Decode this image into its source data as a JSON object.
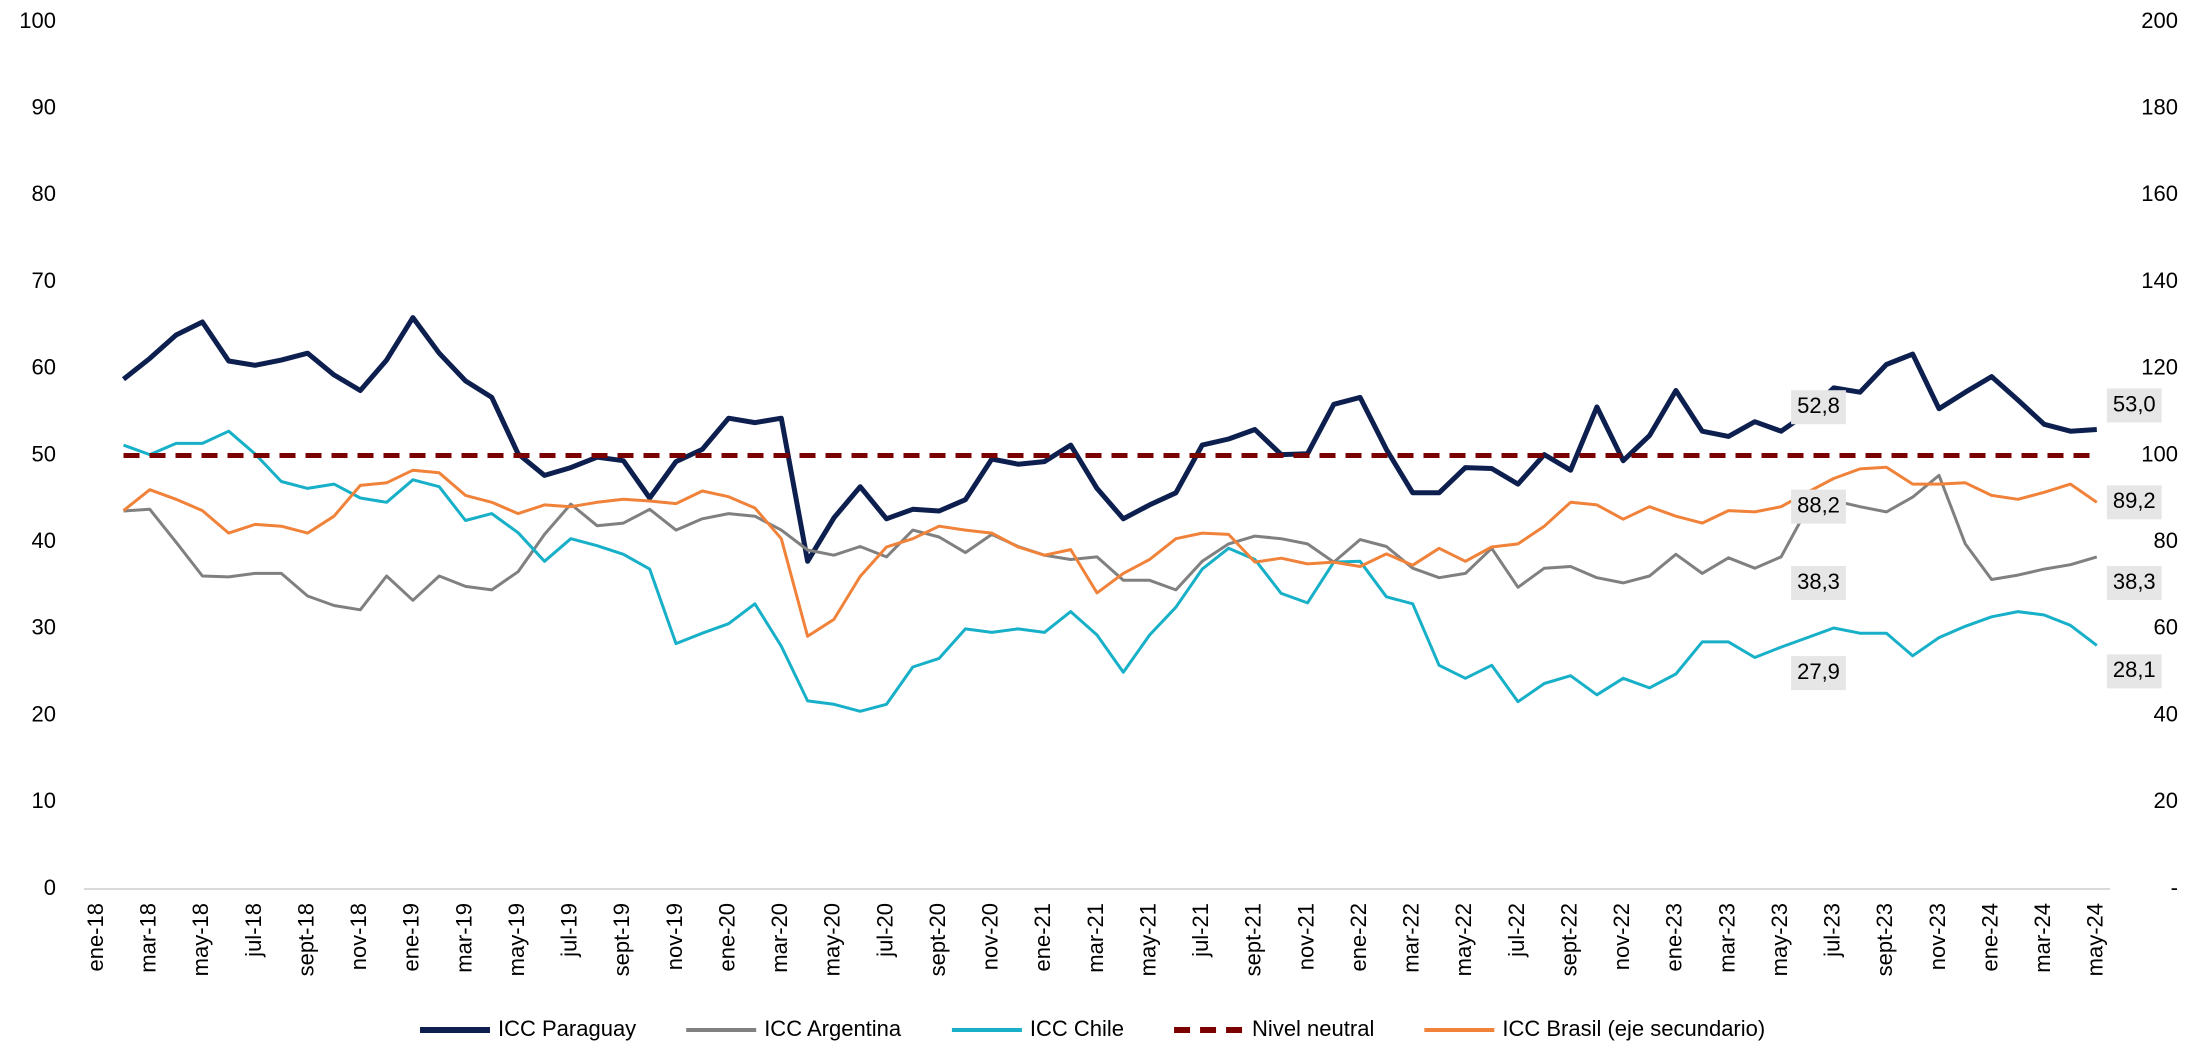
{
  "chart_data": {
    "type": "line",
    "categories": [
      "ene-18",
      null,
      "mar-18",
      null,
      "may-18",
      null,
      "jul-18",
      null,
      "sept-18",
      null,
      "nov-18",
      null,
      "ene-19",
      null,
      "mar-19",
      null,
      "may-19",
      null,
      "jul-19",
      null,
      "sept-19",
      null,
      "nov-19",
      null,
      "ene-20",
      null,
      "mar-20",
      null,
      "may-20",
      null,
      "jul-20",
      null,
      "sept-20",
      null,
      "nov-20",
      null,
      "ene-21",
      null,
      "mar-21",
      null,
      "may-21",
      null,
      "jul-21",
      null,
      "sept-21",
      null,
      "nov-21",
      null,
      "ene-22",
      null,
      "mar-22",
      null,
      "may-22",
      null,
      "jul-22",
      null,
      "sept-22",
      null,
      "nov-22",
      null,
      "ene-23",
      null,
      "mar-23",
      null,
      "may-23",
      null,
      "jul-23",
      null,
      "sept-23",
      null,
      "nov-23",
      null,
      "ene-24",
      null,
      "mar-24",
      null,
      "may-24"
    ],
    "ylim": [
      0,
      100
    ],
    "yticks": [
      0,
      10,
      20,
      30,
      40,
      50,
      60,
      70,
      80,
      90,
      100
    ],
    "y2lim": [
      0,
      200
    ],
    "y2ticks": [
      {
        "value": 0,
        "label": "-"
      },
      20,
      40,
      60,
      80,
      100,
      120,
      140,
      160,
      180,
      200
    ],
    "grid": false,
    "legend": "bottom",
    "series": [
      {
        "name": "ICC Paraguay",
        "color": "#0d1f4f",
        "width": 5,
        "values": [
          null,
          58.8,
          61.2,
          63.9,
          65.4,
          60.9,
          60.4,
          61.0,
          61.8,
          59.3,
          57.5,
          61.0,
          65.9,
          61.8,
          58.6,
          56.7,
          50.2,
          47.7,
          48.6,
          49.8,
          49.4,
          45.1,
          49.3,
          50.7,
          54.3,
          53.8,
          54.3,
          37.8,
          42.8,
          46.4,
          42.7,
          43.8,
          43.6,
          44.9,
          49.6,
          49.0,
          49.3,
          51.2,
          46.2,
          42.7,
          44.3,
          45.7,
          51.2,
          51.9,
          53.0,
          50.1,
          50.2,
          55.9,
          56.7,
          50.7,
          45.7,
          45.7,
          48.6,
          48.5,
          46.7,
          50.1,
          48.3,
          55.6,
          49.4,
          52.3,
          57.5,
          52.8,
          52.2,
          53.9,
          52.8,
          54.9,
          57.8,
          57.3,
          60.5,
          61.7,
          55.4,
          57.3,
          59.1,
          56.4,
          53.6,
          52.8,
          53.0
        ],
        "value_labels": [
          null,
          null,
          null,
          null,
          null,
          null,
          null,
          null,
          null,
          null,
          null,
          null,
          null,
          null,
          null,
          null,
          null,
          null,
          null,
          null,
          null,
          null,
          null,
          null,
          null,
          null,
          null,
          null,
          null,
          null,
          null,
          null,
          null,
          null,
          null,
          null,
          null,
          null,
          null,
          null,
          null,
          null,
          null,
          null,
          null,
          null,
          null,
          null,
          null,
          null,
          null,
          null,
          null,
          null,
          null,
          null,
          null,
          null,
          null,
          null,
          null,
          null,
          null,
          null,
          "52,8",
          null,
          null,
          null,
          null,
          null,
          null,
          null,
          null,
          null,
          null,
          null,
          "53,0"
        ]
      },
      {
        "name": "ICC Argentina",
        "color": "#808080",
        "width": 3,
        "values": [
          null,
          43.6,
          43.8,
          40.0,
          36.1,
          36.0,
          36.4,
          36.4,
          33.8,
          32.7,
          32.2,
          36.1,
          33.3,
          36.1,
          34.9,
          34.5,
          36.6,
          40.9,
          44.4,
          41.9,
          42.2,
          43.8,
          41.4,
          42.7,
          43.3,
          43.0,
          41.4,
          39.1,
          38.5,
          39.5,
          38.3,
          41.4,
          40.6,
          38.8,
          40.9,
          39.5,
          38.5,
          38.0,
          38.3,
          35.6,
          35.6,
          34.5,
          37.8,
          39.8,
          40.7,
          40.4,
          39.8,
          37.7,
          40.3,
          39.5,
          37.0,
          35.9,
          36.4,
          39.3,
          34.8,
          37.0,
          37.2,
          35.9,
          35.3,
          36.1,
          38.6,
          36.4,
          38.2,
          37.0,
          38.3,
          43.9,
          44.8,
          44.1,
          43.5,
          45.2,
          47.7,
          39.8,
          35.7,
          36.2,
          36.9,
          37.4,
          38.3
        ],
        "value_labels": [
          null,
          null,
          null,
          null,
          null,
          null,
          null,
          null,
          null,
          null,
          null,
          null,
          null,
          null,
          null,
          null,
          null,
          null,
          null,
          null,
          null,
          null,
          null,
          null,
          null,
          null,
          null,
          null,
          null,
          null,
          null,
          null,
          null,
          null,
          null,
          null,
          null,
          null,
          null,
          null,
          null,
          null,
          null,
          null,
          null,
          null,
          null,
          null,
          null,
          null,
          null,
          null,
          null,
          null,
          null,
          null,
          null,
          null,
          null,
          null,
          null,
          null,
          null,
          null,
          "38,3",
          null,
          null,
          null,
          null,
          null,
          null,
          null,
          null,
          null,
          null,
          null,
          "38,3"
        ]
      },
      {
        "name": "ICC Chile",
        "color": "#17b0c8",
        "width": 3,
        "values": [
          null,
          51.2,
          50.1,
          51.4,
          51.4,
          52.8,
          50.2,
          47.0,
          46.2,
          46.7,
          45.1,
          44.6,
          47.2,
          46.4,
          42.5,
          43.3,
          41.1,
          37.8,
          40.4,
          39.6,
          38.6,
          36.9,
          28.3,
          29.5,
          30.6,
          32.9,
          28.0,
          21.7,
          21.3,
          20.5,
          21.3,
          25.6,
          26.6,
          30.0,
          29.6,
          30.0,
          29.6,
          32.0,
          29.3,
          25.0,
          29.3,
          32.5,
          36.9,
          39.3,
          38.0,
          34.1,
          33.0,
          37.7,
          37.8,
          33.7,
          32.9,
          25.8,
          24.3,
          25.8,
          21.6,
          23.7,
          24.6,
          22.4,
          24.3,
          23.2,
          24.8,
          28.5,
          28.5,
          26.7,
          27.9,
          29.0,
          30.1,
          29.5,
          29.5,
          26.9,
          29.0,
          30.3,
          31.4,
          32.0,
          31.6,
          30.4,
          28.1
        ],
        "value_labels": [
          null,
          null,
          null,
          null,
          null,
          null,
          null,
          null,
          null,
          null,
          null,
          null,
          null,
          null,
          null,
          null,
          null,
          null,
          null,
          null,
          null,
          null,
          null,
          null,
          null,
          null,
          null,
          null,
          null,
          null,
          null,
          null,
          null,
          null,
          null,
          null,
          null,
          null,
          null,
          null,
          null,
          null,
          null,
          null,
          null,
          null,
          null,
          null,
          null,
          null,
          null,
          null,
          null,
          null,
          null,
          null,
          null,
          null,
          null,
          null,
          null,
          null,
          null,
          null,
          "27,9",
          null,
          null,
          null,
          null,
          null,
          null,
          null,
          null,
          null,
          null,
          null,
          "28,1"
        ]
      },
      {
        "name": "Nivel neutral",
        "color": "#7b0000",
        "width": 5,
        "line_style": "dashed",
        "values": [
          null,
          50,
          50,
          50,
          50,
          50,
          50,
          50,
          50,
          50,
          50,
          50,
          50,
          50,
          50,
          50,
          50,
          50,
          50,
          50,
          50,
          50,
          50,
          50,
          50,
          50,
          50,
          50,
          50,
          50,
          50,
          50,
          50,
          50,
          50,
          50,
          50,
          50,
          50,
          50,
          50,
          50,
          50,
          50,
          50,
          50,
          50,
          50,
          50,
          50,
          50,
          50,
          50,
          50,
          50,
          50,
          50,
          50,
          50,
          50,
          50,
          50,
          50,
          50,
          50,
          50,
          50,
          50,
          50,
          50,
          50,
          50,
          50,
          50,
          50,
          50,
          50
        ]
      },
      {
        "name": "ICC Brasil (eje secundario)",
        "color": "#f0823a",
        "width": 3,
        "axis": "y2",
        "values": [
          null,
          87.3,
          92.1,
          89.9,
          87.3,
          82.1,
          84.1,
          83.7,
          82.1,
          86.0,
          93.1,
          93.7,
          96.6,
          96.0,
          90.8,
          89.2,
          86.6,
          88.6,
          88.2,
          89.2,
          89.9,
          89.5,
          88.9,
          91.8,
          90.5,
          87.9,
          80.8,
          58.3,
          62.2,
          72.1,
          78.9,
          80.8,
          83.7,
          82.8,
          82.1,
          78.9,
          77.0,
          78.3,
          68.3,
          72.8,
          76.0,
          80.8,
          82.1,
          81.8,
          75.4,
          76.3,
          75.0,
          75.4,
          74.4,
          77.3,
          74.7,
          78.6,
          75.6,
          78.9,
          79.6,
          83.7,
          89.2,
          88.6,
          85.3,
          88.2,
          86.0,
          84.4,
          87.3,
          87.0,
          88.2,
          91.5,
          94.7,
          96.9,
          97.3,
          93.4,
          93.4,
          93.7,
          90.8,
          89.9,
          91.5,
          93.4,
          89.2
        ],
        "value_labels": [
          null,
          null,
          null,
          null,
          null,
          null,
          null,
          null,
          null,
          null,
          null,
          null,
          null,
          null,
          null,
          null,
          null,
          null,
          null,
          null,
          null,
          null,
          null,
          null,
          null,
          null,
          null,
          null,
          null,
          null,
          null,
          null,
          null,
          null,
          null,
          null,
          null,
          null,
          null,
          null,
          null,
          null,
          null,
          null,
          null,
          null,
          null,
          null,
          null,
          null,
          null,
          null,
          null,
          null,
          null,
          null,
          null,
          null,
          null,
          null,
          null,
          null,
          null,
          null,
          "88,2",
          null,
          null,
          null,
          null,
          null,
          null,
          null,
          null,
          null,
          null,
          null,
          "89,2"
        ]
      }
    ]
  }
}
